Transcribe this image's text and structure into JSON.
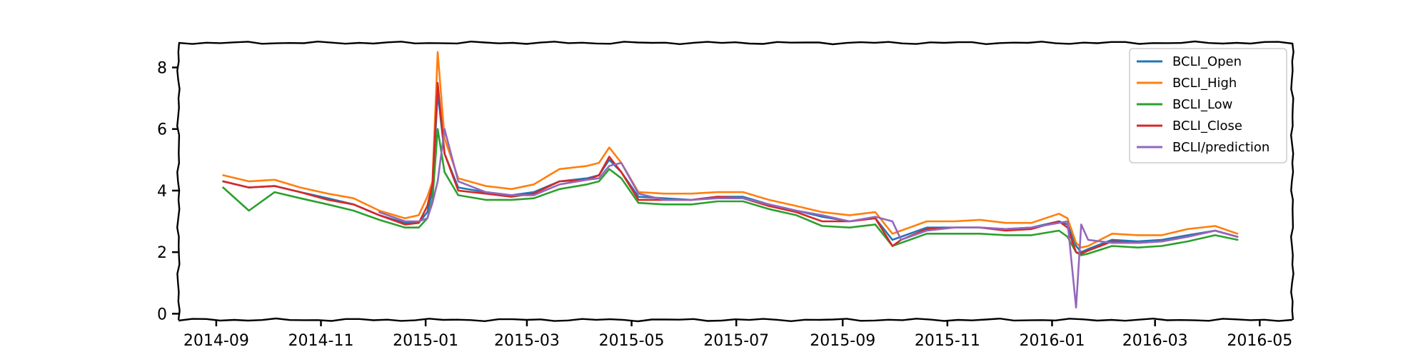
{
  "chart_data": {
    "type": "line",
    "style": "xkcd",
    "x_type": "date",
    "xlim": [
      "2014-08-10",
      "2016-05-20"
    ],
    "ylim": [
      -0.2,
      8.8
    ],
    "x_ticks": [
      {
        "value": "2014-09-01",
        "label": "2014-09"
      },
      {
        "value": "2014-11-01",
        "label": "2014-11"
      },
      {
        "value": "2015-01-01",
        "label": "2015-01"
      },
      {
        "value": "2015-03-01",
        "label": "2015-03"
      },
      {
        "value": "2015-05-01",
        "label": "2015-05"
      },
      {
        "value": "2015-07-01",
        "label": "2015-07"
      },
      {
        "value": "2015-09-01",
        "label": "2015-09"
      },
      {
        "value": "2015-11-01",
        "label": "2015-11"
      },
      {
        "value": "2016-01-01",
        "label": "2016-01"
      },
      {
        "value": "2016-03-01",
        "label": "2016-03"
      },
      {
        "value": "2016-05-01",
        "label": "2016-05"
      }
    ],
    "y_ticks": [
      0,
      2,
      4,
      6,
      8
    ],
    "grid": false,
    "legend_position": "upper right",
    "x": [
      "2014-09-05",
      "2014-09-20",
      "2014-10-05",
      "2014-10-20",
      "2014-11-05",
      "2014-11-20",
      "2014-12-05",
      "2014-12-20",
      "2014-12-28",
      "2015-01-02",
      "2015-01-05",
      "2015-01-08",
      "2015-01-12",
      "2015-01-20",
      "2015-02-05",
      "2015-02-20",
      "2015-03-05",
      "2015-03-20",
      "2015-04-05",
      "2015-04-12",
      "2015-04-18",
      "2015-04-25",
      "2015-05-05",
      "2015-05-20",
      "2015-06-05",
      "2015-06-20",
      "2015-07-05",
      "2015-07-20",
      "2015-08-05",
      "2015-08-20",
      "2015-09-05",
      "2015-09-20",
      "2015-09-30",
      "2015-10-05",
      "2015-10-20",
      "2015-11-05",
      "2015-11-20",
      "2015-12-05",
      "2015-12-20",
      "2016-01-05",
      "2016-01-10",
      "2016-01-15",
      "2016-01-18",
      "2016-01-22",
      "2016-02-05",
      "2016-02-20",
      "2016-03-05",
      "2016-03-20",
      "2016-04-05",
      "2016-04-18"
    ],
    "series": [
      {
        "name": "BCLI_Open",
        "color": "#1f77b4",
        "values": [
          4.3,
          4.1,
          4.15,
          3.95,
          3.75,
          3.55,
          3.2,
          2.95,
          2.95,
          3.3,
          4.0,
          7.2,
          5.2,
          4.1,
          3.95,
          3.85,
          3.95,
          4.3,
          4.4,
          4.5,
          5.0,
          4.6,
          3.8,
          3.75,
          3.7,
          3.8,
          3.8,
          3.55,
          3.35,
          3.15,
          3.0,
          3.1,
          2.4,
          2.5,
          2.8,
          2.8,
          2.8,
          2.75,
          2.8,
          3.0,
          2.9,
          2.2,
          2.0,
          2.1,
          2.4,
          2.35,
          2.4,
          2.55,
          2.7,
          2.5
        ]
      },
      {
        "name": "BCLI_High",
        "color": "#ff7f0e",
        "values": [
          4.5,
          4.3,
          4.35,
          4.1,
          3.9,
          3.75,
          3.35,
          3.1,
          3.2,
          3.8,
          4.3,
          8.5,
          5.7,
          4.4,
          4.15,
          4.05,
          4.2,
          4.7,
          4.8,
          4.9,
          5.4,
          4.9,
          3.95,
          3.9,
          3.9,
          3.95,
          3.95,
          3.7,
          3.5,
          3.3,
          3.2,
          3.3,
          2.6,
          2.7,
          3.0,
          3.0,
          3.05,
          2.95,
          2.95,
          3.25,
          3.1,
          2.3,
          2.15,
          2.2,
          2.6,
          2.55,
          2.55,
          2.75,
          2.85,
          2.6
        ]
      },
      {
        "name": "BCLI_Low",
        "color": "#2ca02c",
        "values": [
          4.1,
          3.35,
          3.95,
          3.75,
          3.55,
          3.35,
          3.05,
          2.8,
          2.8,
          3.1,
          3.7,
          6.0,
          4.6,
          3.85,
          3.7,
          3.7,
          3.75,
          4.05,
          4.2,
          4.3,
          4.7,
          4.4,
          3.6,
          3.55,
          3.55,
          3.65,
          3.65,
          3.4,
          3.2,
          2.85,
          2.8,
          2.9,
          2.2,
          2.3,
          2.6,
          2.6,
          2.6,
          2.55,
          2.55,
          2.7,
          2.5,
          2.0,
          1.9,
          1.95,
          2.2,
          2.15,
          2.2,
          2.35,
          2.55,
          2.4
        ]
      },
      {
        "name": "BCLI_Close",
        "color": "#d62728",
        "values": [
          4.3,
          4.1,
          4.15,
          3.95,
          3.7,
          3.55,
          3.2,
          2.9,
          2.95,
          3.5,
          4.2,
          7.5,
          5.2,
          4.0,
          3.9,
          3.8,
          3.9,
          4.3,
          4.35,
          4.5,
          5.1,
          4.6,
          3.7,
          3.7,
          3.7,
          3.8,
          3.75,
          3.5,
          3.3,
          3.0,
          3.0,
          3.1,
          2.2,
          2.4,
          2.75,
          2.8,
          2.8,
          2.7,
          2.75,
          3.0,
          2.8,
          2.0,
          1.95,
          2.05,
          2.35,
          2.3,
          2.35,
          2.5,
          2.7,
          2.5
        ]
      },
      {
        "name": "BCLI/prediction",
        "color": "#9467bd",
        "values": [
          null,
          null,
          null,
          null,
          null,
          null,
          3.3,
          3.0,
          3.0,
          3.1,
          3.6,
          4.3,
          6.0,
          4.3,
          3.95,
          3.85,
          3.85,
          4.2,
          4.35,
          4.4,
          4.8,
          4.9,
          3.9,
          3.7,
          3.7,
          3.75,
          3.75,
          3.55,
          3.35,
          3.2,
          3.0,
          3.15,
          3.0,
          2.4,
          2.7,
          2.8,
          2.8,
          2.75,
          2.8,
          2.95,
          3.0,
          0.2,
          2.9,
          2.4,
          2.3,
          2.3,
          2.35,
          2.5,
          2.7,
          2.5
        ]
      }
    ]
  }
}
